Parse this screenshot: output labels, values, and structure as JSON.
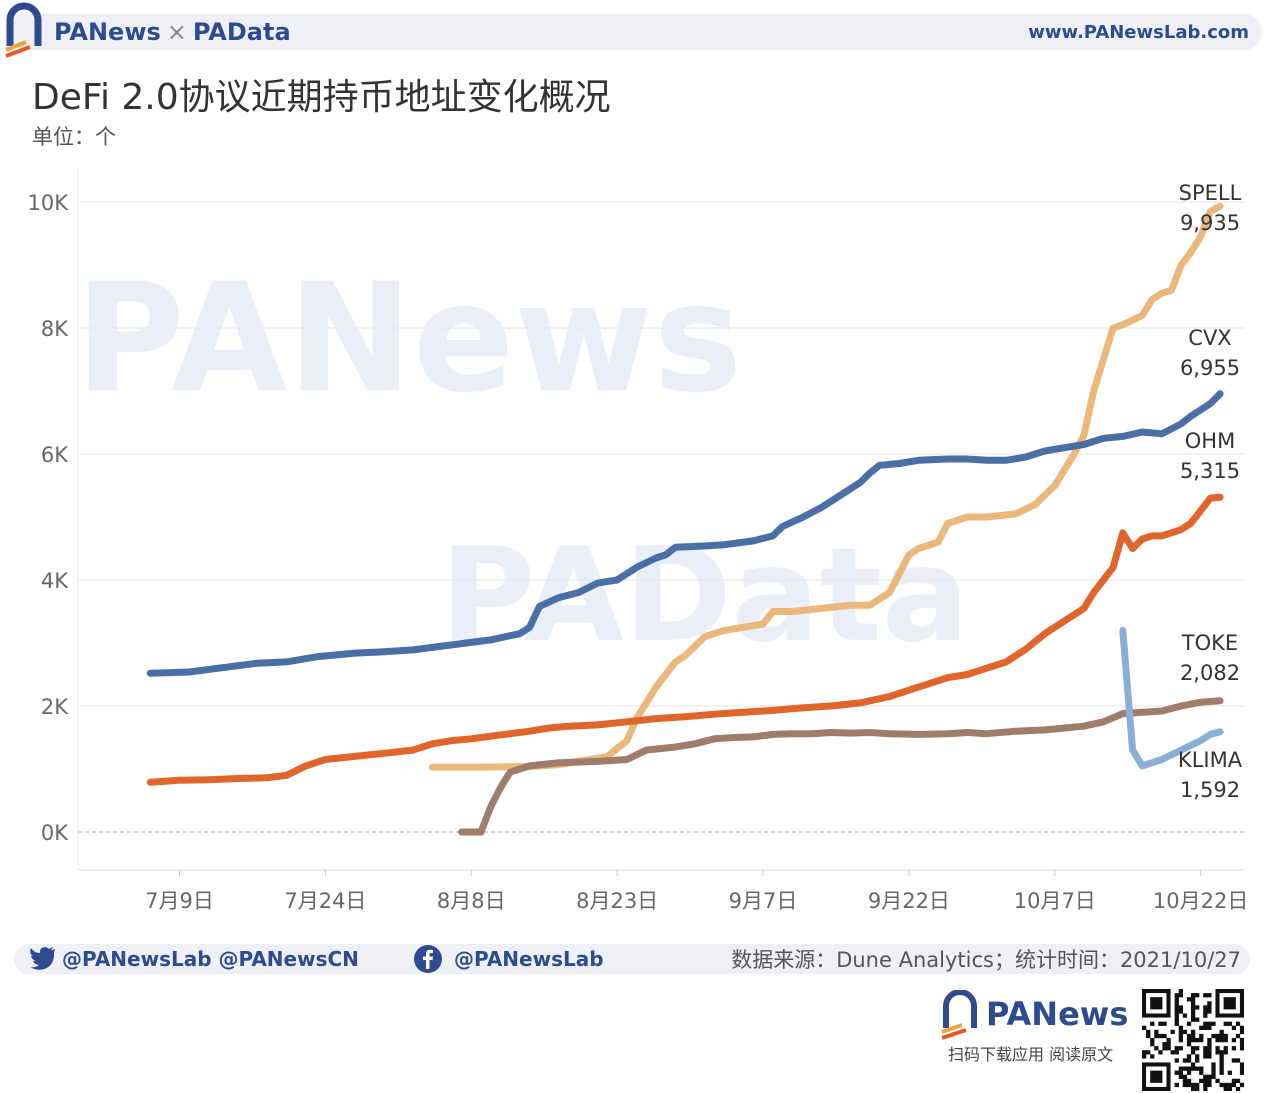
{
  "header": {
    "brand_left": "PANews",
    "brand_sep": "×",
    "brand_right": "PAData",
    "website": "www.PANewsLab.com"
  },
  "title": "DeFi 2.0协议近期持币地址变化概况",
  "unit": "单位：个",
  "chart_data": {
    "type": "line",
    "title": "DeFi 2.0协议近期持币地址变化概况",
    "xlabel": "",
    "ylabel": "",
    "x_ticks": [
      "7月9日",
      "7月24日",
      "8月8日",
      "8月23日",
      "9月7日",
      "9月22日",
      "10月7日",
      "10月22日"
    ],
    "x_tick_day_values": [
      9,
      24,
      39,
      54,
      69,
      84,
      99,
      114
    ],
    "xlim_day_values": [
      0,
      120
    ],
    "ylim": [
      -600,
      10500
    ],
    "y_ticks": [
      0,
      2000,
      4000,
      6000,
      8000,
      10000
    ],
    "y_tick_labels": [
      "0K",
      "2K",
      "4K",
      "6K",
      "8K",
      "10K"
    ],
    "grid": true,
    "series": [
      {
        "name": "SPELL",
        "label_value": "9,935",
        "color": "#eab77c",
        "points": [
          [
            35,
            1030
          ],
          [
            40,
            1030
          ],
          [
            45,
            1040
          ],
          [
            48,
            1070
          ],
          [
            50,
            1120
          ],
          [
            53,
            1200
          ],
          [
            55,
            1450
          ],
          [
            56,
            1800
          ],
          [
            58,
            2300
          ],
          [
            60,
            2700
          ],
          [
            61,
            2800
          ],
          [
            63,
            3100
          ],
          [
            65,
            3200
          ],
          [
            67,
            3250
          ],
          [
            69,
            3300
          ],
          [
            70,
            3500
          ],
          [
            72,
            3500
          ],
          [
            75,
            3550
          ],
          [
            78,
            3600
          ],
          [
            80,
            3600
          ],
          [
            82,
            3800
          ],
          [
            84,
            4400
          ],
          [
            85,
            4500
          ],
          [
            87,
            4600
          ],
          [
            88,
            4900
          ],
          [
            90,
            5000
          ],
          [
            92,
            5000
          ],
          [
            95,
            5050
          ],
          [
            97,
            5200
          ],
          [
            99,
            5500
          ],
          [
            101,
            6000
          ],
          [
            102,
            6300
          ],
          [
            103,
            7000
          ],
          [
            104,
            7500
          ],
          [
            105,
            8000
          ],
          [
            106,
            8050
          ],
          [
            108,
            8200
          ],
          [
            109,
            8450
          ],
          [
            110,
            8550
          ],
          [
            111,
            8600
          ],
          [
            112,
            9000
          ],
          [
            113,
            9200
          ],
          [
            114,
            9450
          ],
          [
            115,
            9850
          ],
          [
            116,
            9935
          ]
        ]
      },
      {
        "name": "CVX",
        "label_value": "6,955",
        "color": "#4a6fa5",
        "points": [
          [
            6,
            2520
          ],
          [
            10,
            2540
          ],
          [
            13,
            2600
          ],
          [
            17,
            2680
          ],
          [
            20,
            2700
          ],
          [
            23,
            2780
          ],
          [
            27,
            2840
          ],
          [
            30,
            2860
          ],
          [
            33,
            2890
          ],
          [
            37,
            2970
          ],
          [
            41,
            3050
          ],
          [
            44,
            3150
          ],
          [
            45,
            3250
          ],
          [
            46,
            3580
          ],
          [
            48,
            3720
          ],
          [
            50,
            3800
          ],
          [
            52,
            3950
          ],
          [
            54,
            4000
          ],
          [
            56,
            4200
          ],
          [
            58,
            4350
          ],
          [
            59,
            4400
          ],
          [
            60,
            4520
          ],
          [
            63,
            4540
          ],
          [
            65,
            4560
          ],
          [
            68,
            4620
          ],
          [
            70,
            4700
          ],
          [
            71,
            4850
          ],
          [
            73,
            4990
          ],
          [
            75,
            5150
          ],
          [
            77,
            5350
          ],
          [
            79,
            5550
          ],
          [
            80,
            5700
          ],
          [
            81,
            5820
          ],
          [
            83,
            5850
          ],
          [
            85,
            5900
          ],
          [
            88,
            5920
          ],
          [
            90,
            5920
          ],
          [
            92,
            5900
          ],
          [
            94,
            5900
          ],
          [
            96,
            5950
          ],
          [
            98,
            6050
          ],
          [
            100,
            6100
          ],
          [
            102,
            6150
          ],
          [
            104,
            6250
          ],
          [
            106,
            6280
          ],
          [
            108,
            6350
          ],
          [
            110,
            6320
          ],
          [
            111,
            6400
          ],
          [
            112,
            6480
          ],
          [
            113,
            6600
          ],
          [
            114,
            6700
          ],
          [
            115,
            6800
          ],
          [
            116,
            6955
          ]
        ]
      },
      {
        "name": "OHM",
        "label_value": "5,315",
        "color": "#e0652a",
        "points": [
          [
            6,
            790
          ],
          [
            9,
            820
          ],
          [
            12,
            830
          ],
          [
            15,
            850
          ],
          [
            18,
            860
          ],
          [
            20,
            900
          ],
          [
            22,
            1050
          ],
          [
            24,
            1150
          ],
          [
            27,
            1200
          ],
          [
            30,
            1250
          ],
          [
            33,
            1300
          ],
          [
            35,
            1400
          ],
          [
            37,
            1450
          ],
          [
            39,
            1480
          ],
          [
            41,
            1520
          ],
          [
            43,
            1560
          ],
          [
            45,
            1600
          ],
          [
            47,
            1650
          ],
          [
            49,
            1680
          ],
          [
            52,
            1700
          ],
          [
            55,
            1750
          ],
          [
            58,
            1800
          ],
          [
            61,
            1830
          ],
          [
            64,
            1870
          ],
          [
            67,
            1900
          ],
          [
            70,
            1930
          ],
          [
            73,
            1970
          ],
          [
            76,
            2000
          ],
          [
            79,
            2050
          ],
          [
            82,
            2150
          ],
          [
            85,
            2300
          ],
          [
            88,
            2450
          ],
          [
            90,
            2500
          ],
          [
            92,
            2600
          ],
          [
            94,
            2700
          ],
          [
            96,
            2900
          ],
          [
            98,
            3150
          ],
          [
            100,
            3350
          ],
          [
            102,
            3550
          ],
          [
            103,
            3800
          ],
          [
            104,
            4000
          ],
          [
            105,
            4200
          ],
          [
            106,
            4750
          ],
          [
            107,
            4500
          ],
          [
            108,
            4650
          ],
          [
            109,
            4700
          ],
          [
            110,
            4700
          ],
          [
            111,
            4750
          ],
          [
            112,
            4800
          ],
          [
            113,
            4900
          ],
          [
            114,
            5100
          ],
          [
            115,
            5300
          ],
          [
            116,
            5315
          ]
        ]
      },
      {
        "name": "TOKE",
        "label_value": "2,082",
        "color": "#a07d6b",
        "points": [
          [
            38,
            0
          ],
          [
            40,
            0
          ],
          [
            41,
            400
          ],
          [
            42,
            700
          ],
          [
            43,
            950
          ],
          [
            45,
            1050
          ],
          [
            48,
            1100
          ],
          [
            52,
            1120
          ],
          [
            55,
            1150
          ],
          [
            57,
            1300
          ],
          [
            60,
            1350
          ],
          [
            62,
            1400
          ],
          [
            64,
            1480
          ],
          [
            66,
            1500
          ],
          [
            68,
            1510
          ],
          [
            70,
            1550
          ],
          [
            72,
            1560
          ],
          [
            74,
            1560
          ],
          [
            76,
            1580
          ],
          [
            78,
            1570
          ],
          [
            80,
            1580
          ],
          [
            82,
            1560
          ],
          [
            85,
            1550
          ],
          [
            88,
            1560
          ],
          [
            90,
            1580
          ],
          [
            92,
            1560
          ],
          [
            95,
            1600
          ],
          [
            98,
            1620
          ],
          [
            100,
            1650
          ],
          [
            102,
            1680
          ],
          [
            104,
            1750
          ],
          [
            106,
            1880
          ],
          [
            108,
            1900
          ],
          [
            110,
            1920
          ],
          [
            112,
            2000
          ],
          [
            114,
            2060
          ],
          [
            116,
            2082
          ]
        ]
      },
      {
        "name": "KLIMA",
        "label_value": "1,592",
        "color": "#8aafd6",
        "points": [
          [
            106,
            3200
          ],
          [
            107,
            1300
          ],
          [
            108,
            1050
          ],
          [
            110,
            1150
          ],
          [
            112,
            1300
          ],
          [
            114,
            1450
          ],
          [
            115,
            1550
          ],
          [
            116,
            1592
          ]
        ]
      }
    ]
  },
  "watermarks": [
    "PANews",
    "PAData"
  ],
  "footer": {
    "twitter_handles": "@PANewsLab  @PANewsCN",
    "facebook_handle": "@PANewsLab",
    "source": "数据来源：Dune Analytics；统计时间：2021/10/27",
    "brand": "PANews",
    "caption": "扫码下载应用  阅读原文"
  }
}
